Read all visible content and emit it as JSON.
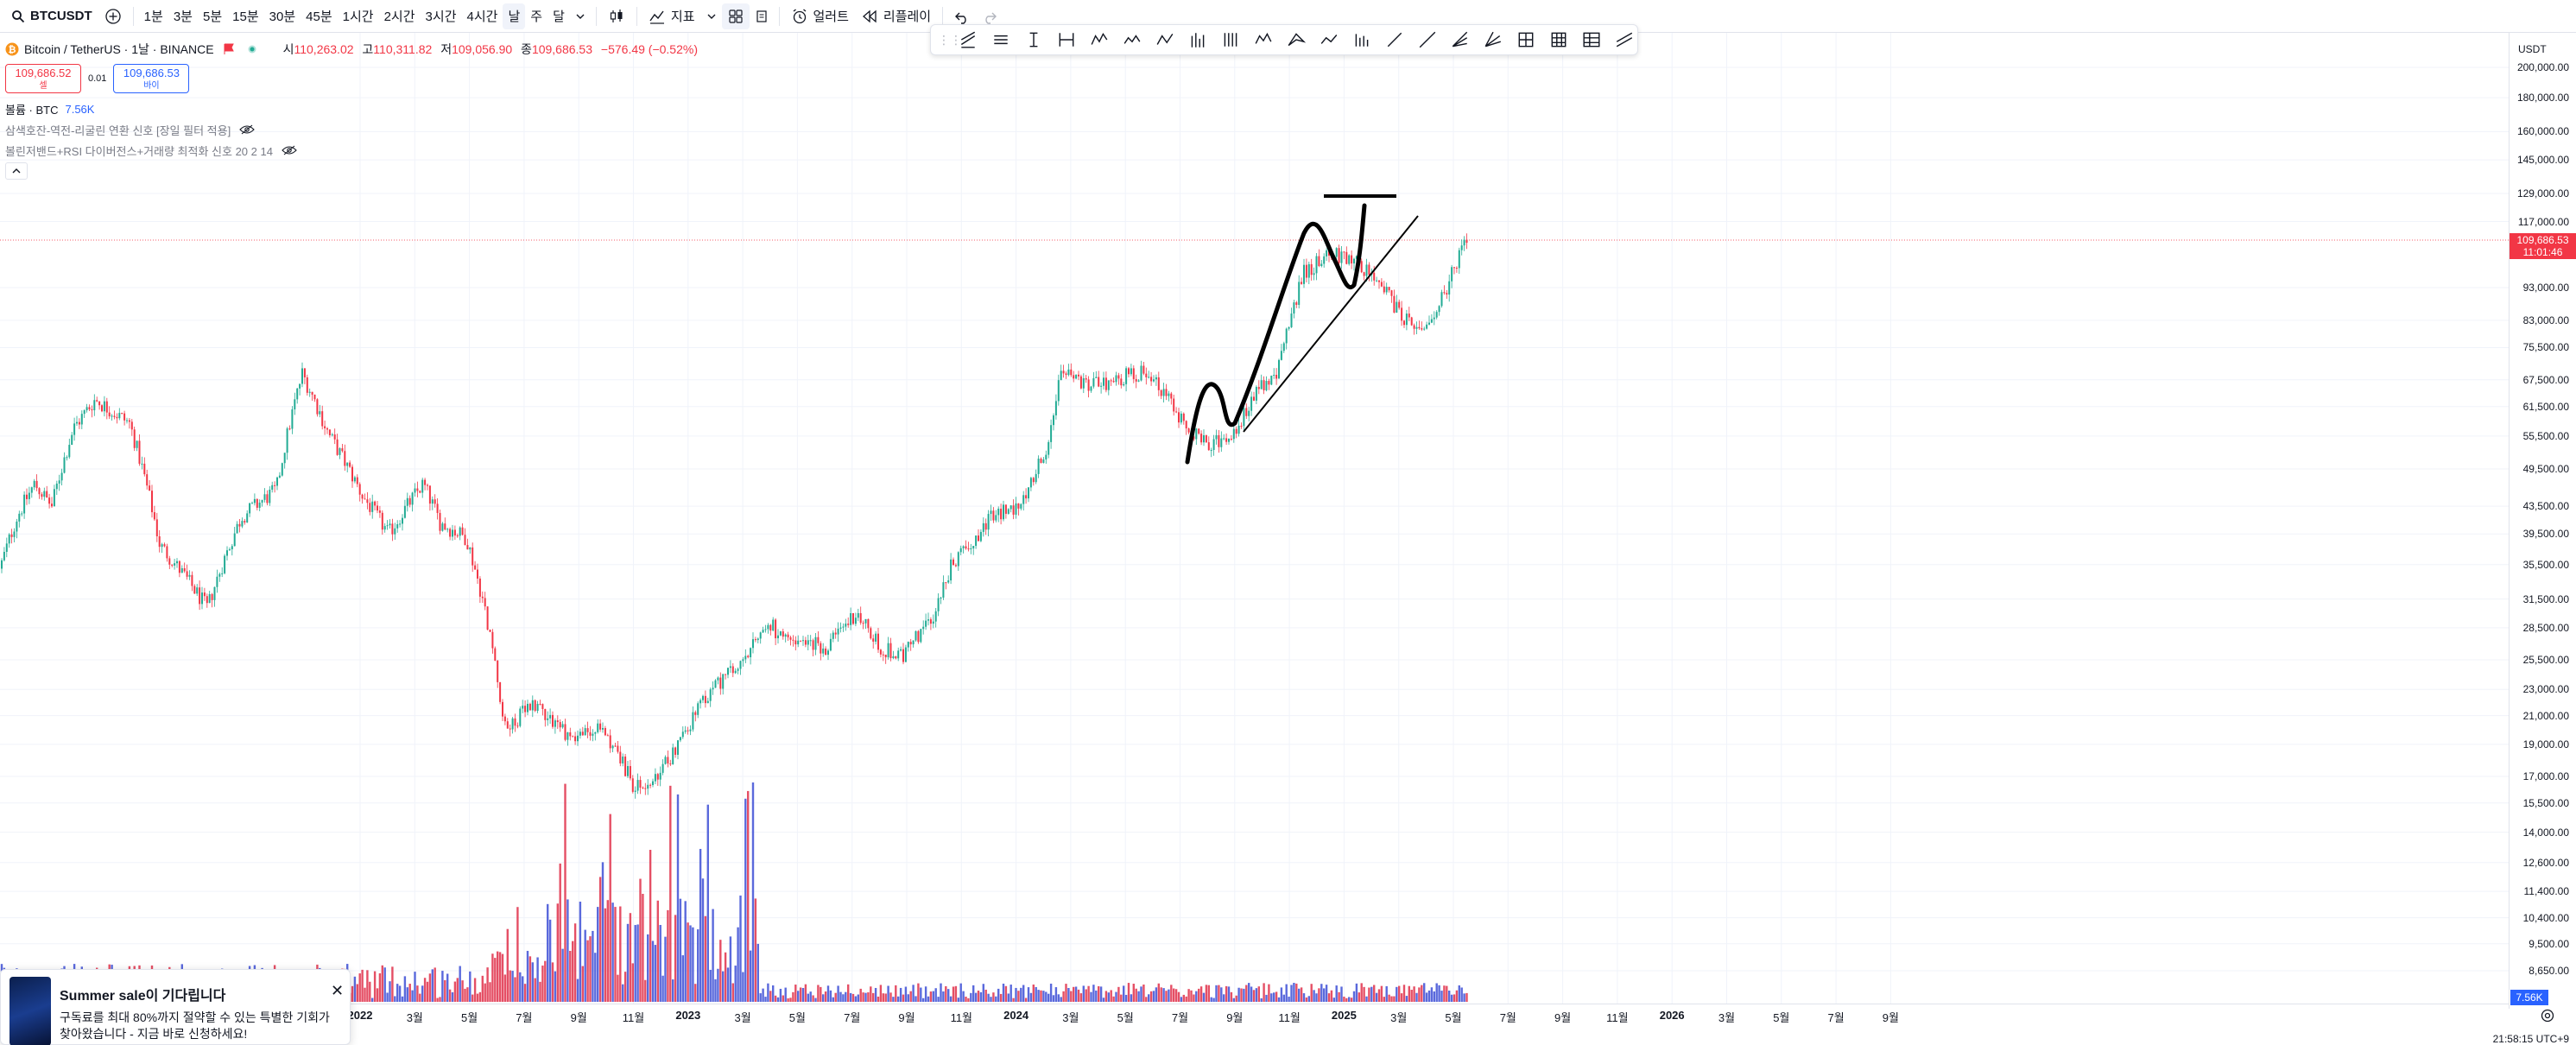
{
  "topbar": {
    "symbol": "BTCUSDT",
    "intervals": [
      "1분",
      "3분",
      "5분",
      "15분",
      "30분",
      "45분",
      "1시간",
      "2시간",
      "3시간",
      "4시간",
      "날",
      "주",
      "달"
    ],
    "active_interval": "날",
    "indicators_label": "지표",
    "alert_label": "얼러트",
    "replay_label": "리플레이"
  },
  "legend": {
    "title": "Bitcoin / TetherUS · 1날 · BINANCE",
    "open_label": "시",
    "open": "110,263.02",
    "high_label": "고",
    "high": "110,311.82",
    "low_label": "저",
    "low": "109,056.90",
    "close_label": "종",
    "close": "109,686.53",
    "change": "−576.49 (−0.52%)",
    "sell_price": "109,686.52",
    "sell_label": "셀",
    "spread": "0.01",
    "buy_price": "109,686.53",
    "buy_label": "바이",
    "volume_label": "볼륨 · BTC",
    "volume_value": "7.56K",
    "indicator1": "삼색호잔-역전-리굴린 연환 신호 [장일 필터 적용]",
    "indicator2": "볼린저밴드+RSI 다이버전스+거래량 최적화 신호 20 2 14"
  },
  "price_axis": {
    "currency": "USDT",
    "ticks": [
      "200,000.00",
      "180,000.00",
      "160,000.00",
      "145,000.00",
      "129,000.00",
      "117,000.00",
      "93,000.00",
      "83,000.00",
      "75,500.00",
      "67,500.00",
      "61,500.00",
      "55,500.00",
      "49,500.00",
      "43,500.00",
      "39,500.00",
      "35,500.00",
      "31,500.00",
      "28,500.00",
      "25,500.00",
      "23,000.00",
      "21,000.00",
      "19,000.00",
      "17,000.00",
      "15,500.00",
      "14,000.00",
      "12,600.00",
      "11,400.00",
      "10,400.00",
      "9,500.00",
      "8,650.00"
    ],
    "last_price": "109,686.53",
    "countdown": "11:01:46",
    "volume_tag": "7.56K"
  },
  "time_axis": {
    "labels": [
      "2022",
      "3월",
      "5월",
      "7월",
      "9월",
      "11월",
      "2023",
      "3월",
      "5월",
      "7월",
      "9월",
      "11월",
      "2024",
      "3월",
      "5월",
      "7월",
      "9월",
      "11월",
      "2025",
      "3월",
      "5월",
      "7월",
      "9월",
      "11월",
      "2026",
      "3월",
      "5월",
      "7월",
      "9월"
    ],
    "clock": "21:58:15 UTC+9"
  },
  "promo": {
    "title": "Summer sale이 기다립니다",
    "body": "구독료를 최대 80%까지 절약할 수 있는 특별한 기회가 찾아왔습니다 - 지금 바로 신청하세요!",
    "close": "✕"
  },
  "colors": {
    "up": "#22ab94",
    "down": "#f23645",
    "volume_up": "#3d4fd6",
    "volume_down": "#e0304a",
    "accent": "#2962ff",
    "drawing": "#000000"
  }
}
